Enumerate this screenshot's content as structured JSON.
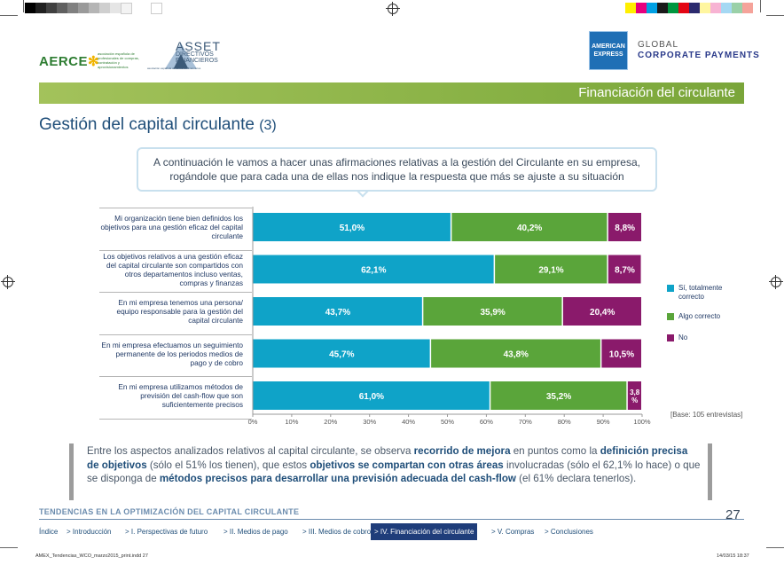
{
  "header": {
    "aerce_logo": "AERCE",
    "aerce_subtitle": "asociación española de profesionales de compras, contratación y aprovisionamientos",
    "asset_logo": "ASSET",
    "asset_subtitle_1": "DIRECTIVOS",
    "asset_subtitle_2": "FINANCIEROS",
    "asset_tagline": "asociación española de directivos financieros",
    "amex_line_1": "AMERICAN",
    "amex_line_2": "EXPRESS",
    "global_line_1": "GLOBAL",
    "global_line_2": "CORPORATE PAYMENTS"
  },
  "section_title": "Financiación del circulante",
  "page_title": "Gestión del capital circulante",
  "page_title_num": "(3)",
  "question_text": "A continuación le vamos a hacer unas afirmaciones relativas a la gestión del Circulante en su empresa, rogándole que para cada una de ellas nos indique la respuesta que más se ajuste a su situación",
  "chart_data": {
    "type": "bar",
    "orientation": "horizontal",
    "stacked": true,
    "categories": [
      "Mi organización tiene bien definidos los objetivos para una gestión eficaz del capital circulante",
      "Los objetivos relativos a una gestión eficaz del capital circulante son compartidos con otros departamentos incluso ventas, compras y finanzas",
      "En mi empresa tenemos una persona/ equipo responsable para la gestión del capital circulante",
      "En mi empresa efectuamos un seguimiento permanente de los periodos medios de pago y de cobro",
      "En mi empresa utilizamos métodos de previsión del cash-flow que son suficientemente precisos"
    ],
    "series": [
      {
        "name": "Sí, totalmente correcto",
        "color": "#0fa3c8",
        "values": [
          51.0,
          62.1,
          43.7,
          45.7,
          61.0
        ],
        "labels": [
          "51,0%",
          "62,1%",
          "43,7%",
          "45,7%",
          "61,0%"
        ]
      },
      {
        "name": "Algo correcto",
        "color": "#5aa53a",
        "values": [
          40.2,
          29.1,
          35.9,
          43.8,
          35.2
        ],
        "labels": [
          "40,2%",
          "29,1%",
          "35,9%",
          "43,8%",
          "35,2%"
        ]
      },
      {
        "name": "No",
        "color": "#8a1a6b",
        "values": [
          8.8,
          8.7,
          20.4,
          10.5,
          3.8
        ],
        "labels": [
          "8,8%",
          "8,7%",
          "20,4%",
          "10,5%",
          "3,8 %"
        ]
      }
    ],
    "xlim": [
      0,
      100
    ],
    "xticks": [
      "0%",
      "10%",
      "20%",
      "30%",
      "40%",
      "50%",
      "60%",
      "70%",
      "80%",
      "90%",
      "100%"
    ],
    "legend": "right",
    "grid": false,
    "base_note": "[Base: 105 entrevistas]"
  },
  "conclusion": {
    "p1": "Entre los aspectos analizados relativos al capital circulante, se observa ",
    "b1": "recorrido de mejora",
    "p2": " en puntos como la ",
    "b2": "definición precisa de objetivos",
    "p3": " (sólo el 51% los tienen), que estos ",
    "b3": "objetivos se compartan con otras áreas",
    "p4": " involucradas (sólo el 62,1% lo hace) o que se disponga de ",
    "b4": "métodos precisos para desarrollar una previsión adecuada del cash-flow",
    "p5": " (el 61% declara tenerlos)."
  },
  "footer": {
    "title": "TENDENCIAS EN LA OPTIMIZACIÓN DEL CAPITAL CIRCULANTE",
    "page_number": "27",
    "nav": [
      {
        "label": "Índice",
        "arrow": ""
      },
      {
        "label": "Introducción",
        "arrow": ">"
      },
      {
        "label": "I. Perspectivas de futuro",
        "arrow": ">"
      },
      {
        "label": "II. Medios de pago",
        "arrow": ">"
      },
      {
        "label": "III. Medios de cobro",
        "arrow": ">"
      },
      {
        "label": "IV. Financiación del circulante",
        "arrow": ">"
      },
      {
        "label": "V. Compras",
        "arrow": ">"
      },
      {
        "label": "Conclusiones",
        "arrow": ">"
      }
    ],
    "slug_left": "AMEX_Tendencias_WCO_marzo2015_print.indd   27",
    "slug_right": "14/03/15   18:37"
  },
  "colors": {
    "section_bar": "#86b043",
    "title_blue": "#1f4e79",
    "nav_active": "#1f3d7a"
  }
}
